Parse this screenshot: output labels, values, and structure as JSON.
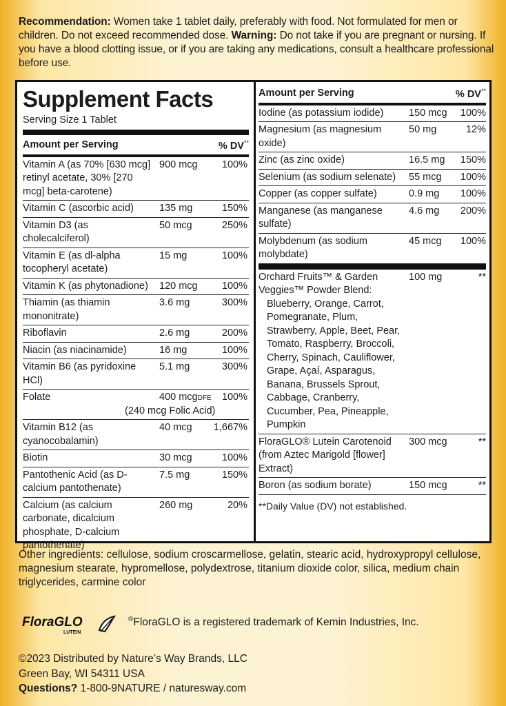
{
  "recommendation": {
    "label": "Recommendation:",
    "text": " Women take 1 tablet daily, preferably with food.  Not formulated for men or children. Do not exceed recommended dose. ",
    "warning_label": "Warning:",
    "warning_text": " Do not take if you are pregnant or nursing. If you have a blood clotting issue, or if you are taking any medications, consult a healthcare professional before use."
  },
  "facts": {
    "title": "Supplement Facts",
    "serving_size": "Serving Size 1 Tablet",
    "header_amount": "Amount per Serving",
    "header_dv": "% DV",
    "header_dv_mark": "**",
    "left_rows": [
      {
        "name": "Vitamin A (as 70% [630 mcg] retinyl acetate, 30% [270 mcg] beta-carotene)",
        "amount": "900 mcg",
        "dv": "100%"
      },
      {
        "name": "Vitamin C (ascorbic acid)",
        "amount": "135 mg",
        "dv": "150%"
      },
      {
        "name": "Vitamin D3 (as cholecalciferol)",
        "amount": "50 mcg",
        "dv": "250%"
      },
      {
        "name": "Vitamin E (as dl-alpha tocopheryl acetate)",
        "amount": "15 mg",
        "dv": "100%"
      },
      {
        "name": "Vitamin K (as phytonadione)",
        "amount": "120 mcg",
        "dv": "100%"
      },
      {
        "name": "Thiamin (as thiamin mononitrate)",
        "amount": "3.6 mg",
        "dv": "300%"
      },
      {
        "name": "Riboflavin",
        "amount": "2.6 mg",
        "dv": "200%"
      },
      {
        "name": "Niacin (as niacinamide)",
        "amount": "16 mg",
        "dv": "100%"
      },
      {
        "name": "Vitamin B6 (as pyridoxine HCl)",
        "amount": "5.1 mg",
        "dv": "300%"
      },
      {
        "name": "Folate",
        "amount": "400 mcg",
        "unit_note": "DFE",
        "sub": "(240 mcg Folic Acid)",
        "dv": "100%"
      },
      {
        "name": "Vitamin B12 (as cyanocobalamin)",
        "amount": "40 mcg",
        "dv": "1,667%"
      },
      {
        "name": "Biotin",
        "amount": "30 mcg",
        "dv": "100%"
      },
      {
        "name": "Pantothenic Acid (as D-calcium pantothenate)",
        "amount": "7.5 mg",
        "dv": "150%"
      },
      {
        "name": "Calcium (as calcium carbonate, dicalcium phosphate, D-calcium pantothenate)",
        "amount": "260 mg",
        "dv": "20%"
      }
    ],
    "right_rows": [
      {
        "name": "Iodine (as potassium iodide)",
        "amount": "150 mcg",
        "dv": "100%"
      },
      {
        "name": "Magnesium (as magnesium oxide)",
        "amount": "50 mg",
        "dv": "12%"
      },
      {
        "name": "Zinc (as zinc oxide)",
        "amount": "16.5 mg",
        "dv": "150%"
      },
      {
        "name": "Selenium (as sodium selenate)",
        "amount": "55 mcg",
        "dv": "100%"
      },
      {
        "name": "Copper (as copper sulfate)",
        "amount": "0.9 mg",
        "dv": "100%"
      },
      {
        "name": "Manganese (as manganese sulfate)",
        "amount": "4.6 mg",
        "dv": "200%"
      },
      {
        "name": "Molybdenum (as sodium molybdate)",
        "amount": "45 mcg",
        "dv": "100%"
      }
    ],
    "blend_rows": [
      {
        "name": "Orchard Fruits™ & Garden Veggies™ Powder Blend:",
        "list": "Blueberry, Orange, Carrot, Pomegranate, Plum, Strawberry, Apple, Beet, Pear, Tomato, Raspberry, Broccoli, Cherry, Spinach, Cauliflower, Grape, Açaí, Asparagus, Banana, Brussels Sprout, Cabbage, Cranberry, Cucumber, Pea, Pineapple, Pumpkin",
        "amount": "100 mg",
        "dv": "**"
      },
      {
        "name": "FloraGLO® Lutein Carotenoid (from Aztec Marigold [flower] Extract)",
        "amount": "300 mcg",
        "dv": "**"
      },
      {
        "name": "Boron (as sodium borate)",
        "amount": "150 mcg",
        "dv": "**"
      }
    ],
    "footnote": "**Daily Value (DV) not established."
  },
  "other_ingredients": "Other ingredients: cellulose, sodium croscarmellose, gelatin, stearic acid, hydroxypropyl cellulose, magnesium stearate, hypromellose, polydextrose, titanium dioxide color, silica, medium chain triglycerides, carmine color",
  "logo": {
    "brand": "FloraGLO",
    "sub": "LUTEIN"
  },
  "trademark": {
    "mark": "®",
    "text": "FloraGLO is a registered trademark of Kemin Industries, Inc."
  },
  "distributor": {
    "line1": "©2023 Distributed by Nature’s Way Brands, LLC",
    "line2": "Green Bay, WI 54311 USA",
    "questions_label": "Questions?",
    "questions_text": " 1-800-9NATURE / naturesway.com"
  },
  "colors": {
    "panel": "#f2b928",
    "ink": "#111111",
    "box": "#ffffff"
  }
}
